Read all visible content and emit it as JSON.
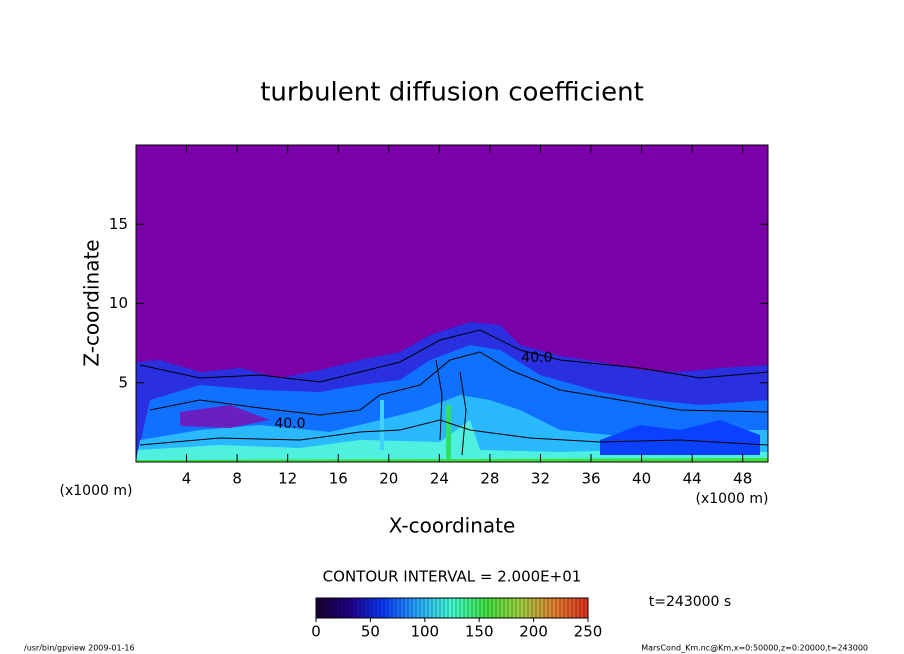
{
  "chart_data": {
    "type": "contour",
    "title": "turbulent diffusion coefficient",
    "x_label": "X-coordinate",
    "y_label": "Z-coordinate",
    "x_unit": "(x1000 m)",
    "y_unit": "(x1000 m)",
    "xlim": [
      0,
      50
    ],
    "xticks": [
      4,
      8,
      12,
      16,
      20,
      24,
      28,
      32,
      36,
      40,
      44,
      48
    ],
    "ylim": [
      0,
      20
    ],
    "yticks": [
      5,
      10,
      15
    ],
    "contour_labels": [
      "40.0",
      "40.0"
    ],
    "contour_interval": "CONTOUR INTERVAL = 2.000E+01",
    "colorbar": {
      "lim": [
        0,
        250
      ],
      "ticks": [
        0,
        50,
        100,
        150,
        200,
        250
      ],
      "colors": [
        "#1a0030",
        "#20008a",
        "#0a3cff",
        "#2aa8ff",
        "#40ffd0",
        "#40e040",
        "#a0d040",
        "#e08030",
        "#e03020"
      ]
    },
    "time_label": "t=243000 s",
    "footer_left": "/usr/bin/gpview  2009-01-16",
    "footer_right": "MarsCond_Km.nc@Km,x=0:50000,z=0:20000,t=243000"
  }
}
